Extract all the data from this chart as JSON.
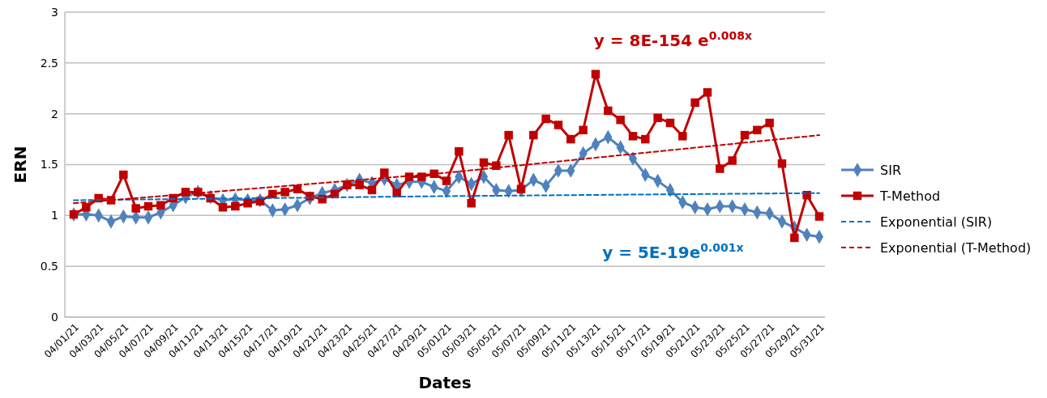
{
  "chart_data": {
    "type": "line",
    "xlabel": "Dates",
    "ylabel": "ERN",
    "categories": [
      "04/01/21",
      null,
      "04/03/21",
      null,
      "04/05/21",
      null,
      "04/07/21",
      null,
      "04/09/21",
      null,
      "04/11/21",
      null,
      "04/13/21",
      null,
      "04/15/21",
      null,
      "04/17/21",
      null,
      "04/19/21",
      null,
      "04/21/21",
      null,
      "04/23/21",
      null,
      "04/25/21",
      null,
      "04/27/21",
      null,
      "04/29/21",
      null,
      "05/01/21",
      null,
      "05/03/21",
      null,
      "05/05/21",
      null,
      "05/07/21",
      null,
      "05/09/21",
      null,
      "05/11/21",
      null,
      "05/13/21",
      null,
      "05/15/21",
      null,
      "05/17/21",
      null,
      "05/19/21",
      null,
      "05/21/21",
      null,
      "05/23/21",
      null,
      "05/25/21",
      null,
      "05/27/21",
      null,
      "05/29/21",
      null,
      "05/31/21"
    ],
    "series": [
      {
        "name": "SIR",
        "color": "#4f81bd",
        "marker": "diamond",
        "line_style": "solid",
        "values": [
          1.01,
          1.01,
          1.0,
          0.94,
          0.99,
          0.98,
          0.98,
          1.03,
          1.1,
          1.18,
          1.23,
          1.18,
          1.15,
          1.16,
          1.15,
          1.15,
          1.05,
          1.06,
          1.1,
          1.17,
          1.22,
          1.25,
          1.3,
          1.35,
          1.32,
          1.36,
          1.3,
          1.33,
          1.33,
          1.28,
          1.24,
          1.38,
          1.31,
          1.38,
          1.25,
          1.24,
          1.25,
          1.35,
          1.29,
          1.44,
          1.44,
          1.61,
          1.7,
          1.77,
          1.67,
          1.56,
          1.4,
          1.34,
          1.25,
          1.13,
          1.08,
          1.06,
          1.09,
          1.09,
          1.06,
          1.03,
          1.02,
          0.94,
          0.88,
          0.81,
          0.79
        ]
      },
      {
        "name": "T-Method",
        "color": "#c00000",
        "marker": "square",
        "line_style": "solid",
        "values": [
          1.01,
          1.08,
          1.17,
          1.15,
          1.4,
          1.07,
          1.09,
          1.1,
          1.17,
          1.23,
          1.23,
          1.17,
          1.08,
          1.09,
          1.12,
          1.14,
          1.21,
          1.23,
          1.26,
          1.19,
          1.16,
          1.21,
          1.3,
          1.3,
          1.25,
          1.42,
          1.22,
          1.38,
          1.38,
          1.41,
          1.34,
          1.63,
          1.12,
          1.52,
          1.49,
          1.79,
          1.26,
          1.79,
          1.95,
          1.89,
          1.75,
          1.84,
          2.39,
          2.03,
          1.94,
          1.78,
          1.75,
          1.96,
          1.91,
          1.78,
          2.11,
          2.21,
          1.46,
          1.54,
          1.79,
          1.84,
          1.91,
          1.51,
          0.78,
          1.2,
          0.99
        ]
      },
      {
        "name": "Exponential (SIR)",
        "color": "#0070c0",
        "marker": "none",
        "line_style": "dashed",
        "x": [
          "04/01/21",
          "05/01/21",
          "05/31/21"
        ],
        "values": [
          1.15,
          1.19,
          1.22
        ]
      },
      {
        "name": "Exponential (T-Method)",
        "color": "#c00000",
        "marker": "none",
        "line_style": "dashed",
        "x": [
          "04/01/21",
          "05/01/21",
          "05/31/21"
        ],
        "values": [
          1.12,
          1.42,
          1.79
        ]
      }
    ],
    "annotations": [
      "y = 8E-154 e$^{0.008x}$",
      "y = 5E-19e$^{0.001x}$"
    ],
    "ylim": [
      0,
      3
    ],
    "yticks": [
      0,
      0.5,
      1,
      1.5,
      2,
      2.5,
      3
    ],
    "grid": "y",
    "legend": "right"
  }
}
